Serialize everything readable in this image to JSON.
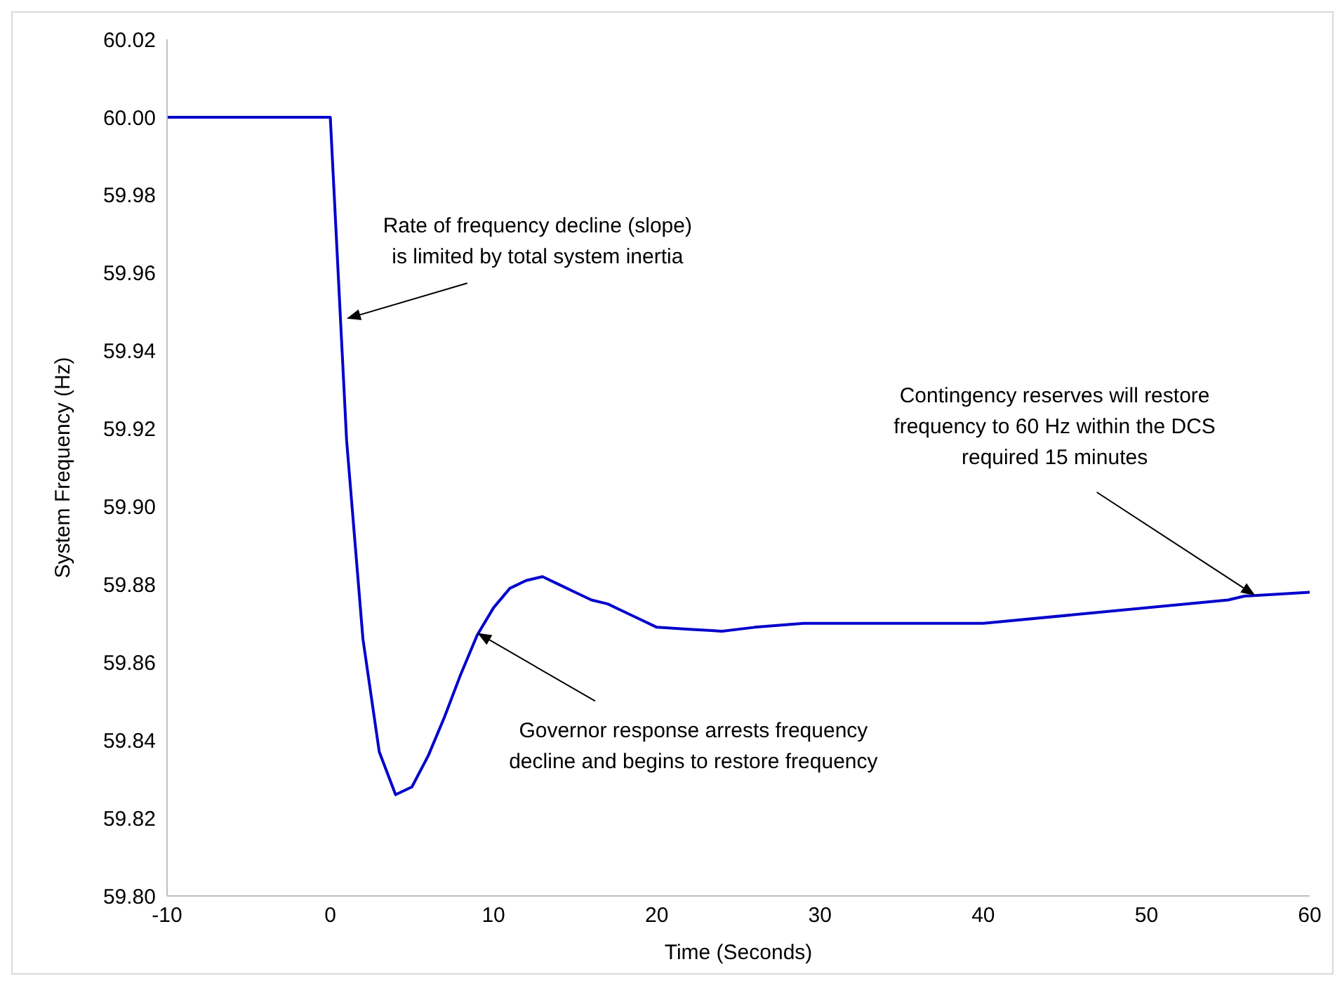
{
  "chart_data": {
    "type": "line",
    "xlabel": "Time (Seconds)",
    "ylabel": "System Frequency (Hz)",
    "x": [
      -10,
      0,
      1,
      2,
      3,
      4,
      5,
      6,
      7,
      8,
      9,
      10,
      11,
      12,
      13,
      14,
      15,
      16,
      17,
      18,
      19,
      20,
      22,
      24,
      26,
      29,
      40,
      55,
      56,
      60
    ],
    "series": [
      {
        "color": "#0000cc",
        "values": [
          60.0,
          60.0,
          59.917,
          59.866,
          59.837,
          59.826,
          59.828,
          59.836,
          59.846,
          59.857,
          59.867,
          59.874,
          59.879,
          59.881,
          59.882,
          59.88,
          59.878,
          59.876,
          59.875,
          59.873,
          59.871,
          59.869,
          59.8685,
          59.868,
          59.869,
          59.87,
          59.87,
          59.876,
          59.877,
          59.878
        ]
      }
    ],
    "xlim": [
      -10,
      60
    ],
    "xticks": [
      -10,
      0,
      10,
      20,
      30,
      40,
      50,
      60
    ],
    "ylim": [
      59.8,
      60.02
    ],
    "yticks": [
      {
        "value": 59.8,
        "label": "59.80"
      },
      {
        "value": 59.82,
        "label": "59.82"
      },
      {
        "value": 59.84,
        "label": "59.84"
      },
      {
        "value": 59.86,
        "label": "59.86"
      },
      {
        "value": 59.88,
        "label": "59.88"
      },
      {
        "value": 59.9,
        "label": "59.90"
      },
      {
        "value": 59.92,
        "label": "59.92"
      },
      {
        "value": 59.94,
        "label": "59.94"
      },
      {
        "value": 59.96,
        "label": "59.96"
      },
      {
        "value": 59.98,
        "label": "59.98"
      },
      {
        "value": 60.0,
        "label": "60.00"
      },
      {
        "value": 60.02,
        "label": "60.02"
      }
    ],
    "grid": false,
    "legend": false,
    "marker": "none",
    "line_style": "solid",
    "annotations": [
      {
        "text": "Rate of frequency decline (slope)\nis limited by total system inertia",
        "x": 1,
        "y": 59.948
      },
      {
        "text": "Governor response arrests frequency\ndecline and begins to restore frequency",
        "x": 9,
        "y": 59.867
      },
      {
        "text": "Contingency reserves will restore\nfrequency to 60 Hz within the DCS\nrequired 15 minutes",
        "x": 56.5,
        "y": 59.877
      }
    ]
  }
}
